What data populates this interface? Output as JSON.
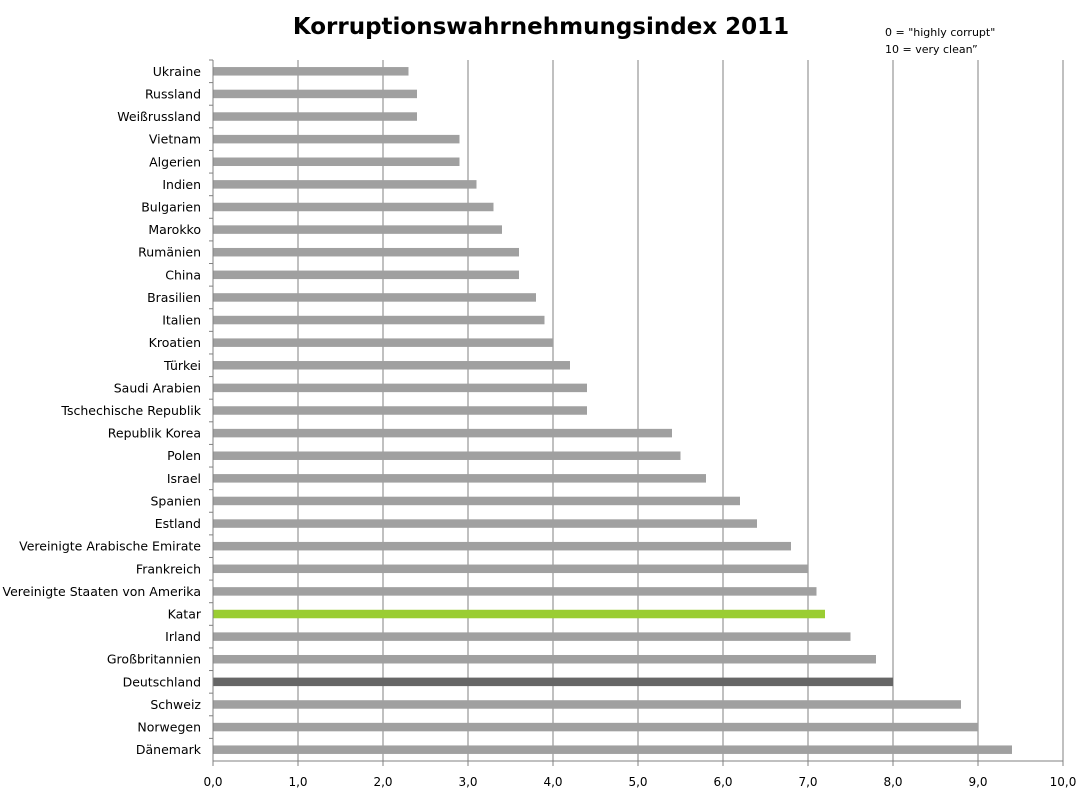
{
  "chart_data": {
    "type": "bar",
    "orientation": "horizontal",
    "title": "Korruptionswahrnehmungsindex 2011",
    "notes": [
      "0 = \"highly corrupt\"",
      "10 = very clean”"
    ],
    "categories": [
      "Ukraine",
      "Russland",
      "Weißrussland",
      "Vietnam",
      "Algerien",
      "Indien",
      "Bulgarien",
      "Marokko",
      "Rumänien",
      "China",
      "Brasilien",
      "Italien",
      "Kroatien",
      "Türkei",
      "Saudi Arabien",
      "Tschechische Republik",
      "Republik Korea",
      "Polen",
      "Israel",
      "Spanien",
      "Estland",
      "Vereinigte Arabische Emirate",
      "Frankreich",
      "Vereinigte Staaten von Amerika",
      "Katar",
      "Irland",
      "Großbritannien",
      "Deutschland",
      "Schweiz",
      "Norwegen",
      "Dänemark"
    ],
    "values": [
      2.3,
      2.4,
      2.4,
      2.9,
      2.9,
      3.1,
      3.3,
      3.4,
      3.6,
      3.6,
      3.8,
      3.9,
      4.0,
      4.2,
      4.4,
      4.4,
      5.4,
      5.5,
      5.8,
      6.2,
      6.4,
      6.8,
      7.0,
      7.1,
      7.2,
      7.5,
      7.8,
      8.0,
      8.8,
      9.0,
      9.4
    ],
    "xlim": [
      0,
      10
    ],
    "xticks": [
      "0,0",
      "1,0",
      "2,0",
      "3,0",
      "4,0",
      "5,0",
      "6,0",
      "7,0",
      "8,0",
      "9,0",
      "10,0"
    ],
    "xtick_values": [
      0,
      1,
      2,
      3,
      4,
      5,
      6,
      7,
      8,
      9,
      10
    ],
    "grid": "vertical",
    "highlight": {
      "Katar": "#9acd32",
      "Deutschland": "#666666"
    },
    "bar_color": "#a0a0a0",
    "grid_color": "#808080"
  }
}
